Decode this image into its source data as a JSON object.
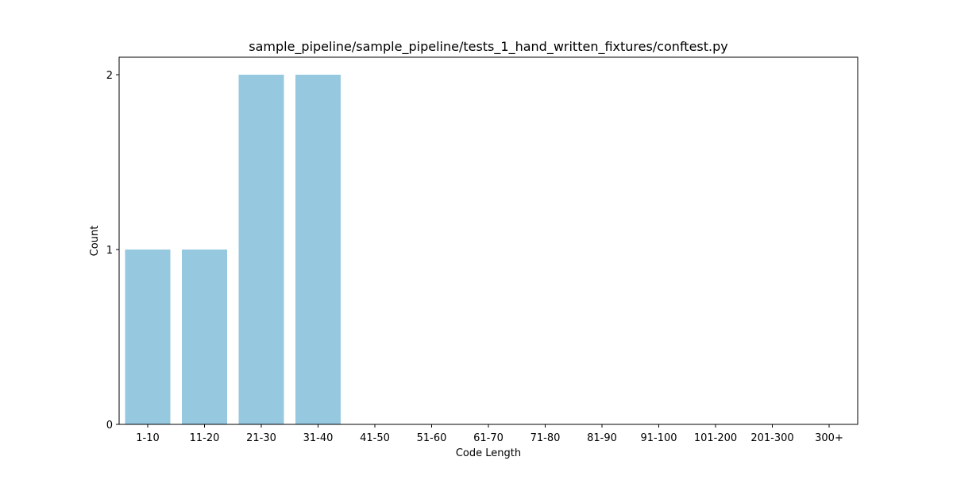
{
  "chart_data": {
    "type": "bar",
    "title": "sample_pipeline/sample_pipeline/tests_1_hand_written_fixtures/conftest.py",
    "xlabel": "Code Length",
    "ylabel": "Count",
    "categories": [
      "1-10",
      "11-20",
      "21-30",
      "31-40",
      "41-50",
      "51-60",
      "61-70",
      "71-80",
      "81-90",
      "91-100",
      "101-200",
      "201-300",
      "300+"
    ],
    "values": [
      1,
      1,
      2,
      2,
      0,
      0,
      0,
      0,
      0,
      0,
      0,
      0,
      0
    ],
    "ylim": [
      0,
      2.1
    ],
    "yticks": [
      "0",
      "1",
      "2"
    ],
    "bar_color": "#96c9df",
    "grid": false,
    "legend": "none"
  }
}
